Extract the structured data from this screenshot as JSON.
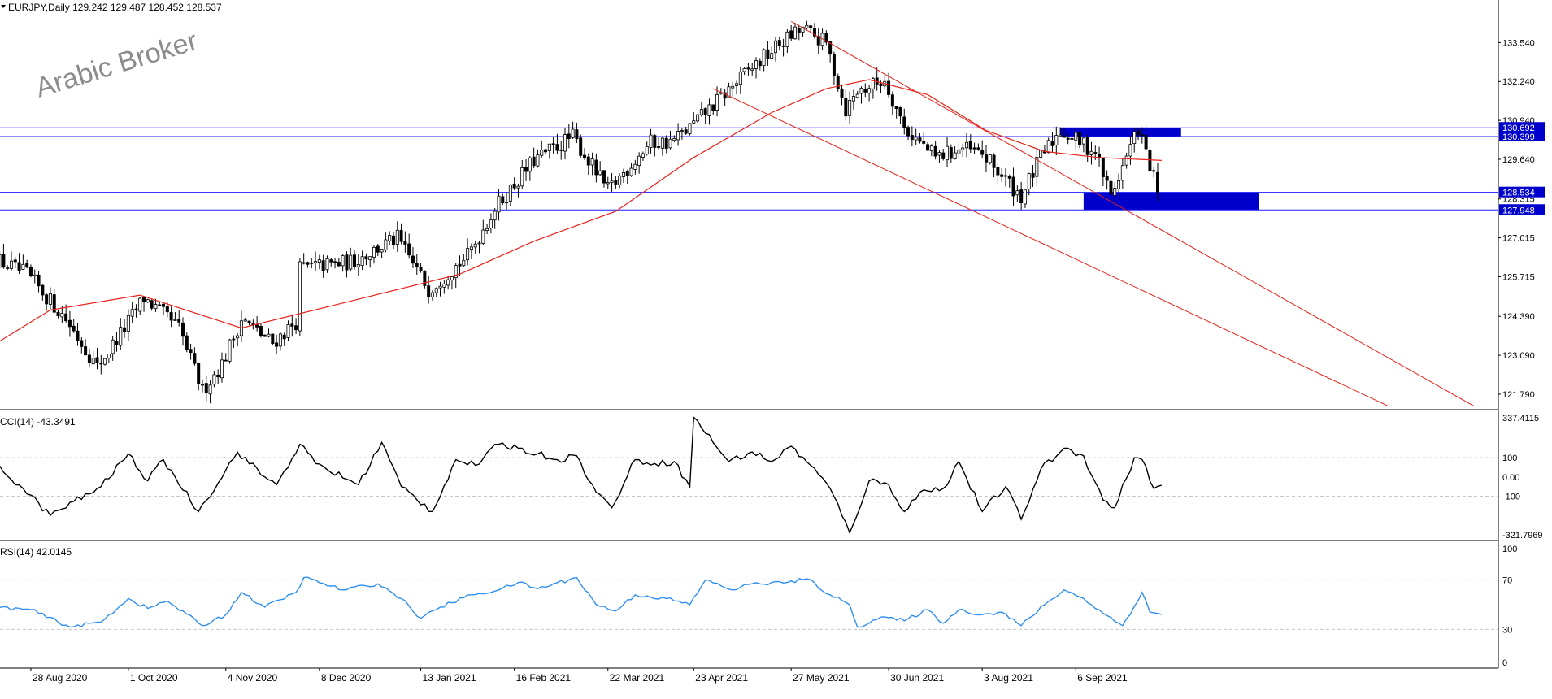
{
  "header": {
    "symbol_line": "EURJPY,Daily  129.242 129.487 128.452 128.537",
    "watermark": "Arabic Broker"
  },
  "colors": {
    "candle": "#000000",
    "moving_average": "#e8211a",
    "channel": "#e8211a",
    "level_line": "#1a1aff",
    "zone": "#0000cc",
    "cci_line": "#000000",
    "rsi_line": "#2e8ff0",
    "grid_dash": "#c8c8c8",
    "label_bg": "#0000cc"
  },
  "chart_data": [
    {
      "type": "candlestick",
      "name": "price",
      "title": "EURJPY,Daily",
      "ohlc_last": {
        "open": 129.242,
        "high": 129.487,
        "low": 128.452,
        "close": 128.537
      },
      "ylim": [
        121.3,
        134.8
      ],
      "y_ticks": [
        "133.540",
        "132.240",
        "130.940",
        "129.640",
        "128.315",
        "127.015",
        "125.715",
        "124.390",
        "123.090",
        "121.790"
      ],
      "x_ticks": [
        "28 Aug 2020",
        "1 Oct 2020",
        "4 Nov 2020",
        "8 Dec 2020",
        "13 Jan 2021",
        "16 Feb 2021",
        "22 Mar 2021",
        "23 Apr 2021",
        "27 May 2021",
        "30 Jun 2021",
        "3 Aug 2021",
        "6 Sep 2021"
      ],
      "key_closes": [
        {
          "date": "2020-08-14",
          "value": 126.4
        },
        {
          "date": "2020-08-28",
          "value": 125.8
        },
        {
          "date": "2020-09-10",
          "value": 124.3
        },
        {
          "date": "2020-09-21",
          "value": 122.7
        },
        {
          "date": "2020-09-30",
          "value": 124.0
        },
        {
          "date": "2020-10-09",
          "value": 125.0
        },
        {
          "date": "2020-10-20",
          "value": 124.0
        },
        {
          "date": "2020-10-30",
          "value": 121.9
        },
        {
          "date": "2020-11-06",
          "value": 122.8
        },
        {
          "date": "2020-11-12",
          "value": 124.3
        },
        {
          "date": "2020-11-23",
          "value": 123.5
        },
        {
          "date": "2020-12-01",
          "value": 124.2
        },
        {
          "date": "2020-12-04",
          "value": 126.0
        },
        {
          "date": "2020-12-21",
          "value": 126.2
        },
        {
          "date": "2021-01-06",
          "value": 127.0
        },
        {
          "date": "2021-01-18",
          "value": 125.3
        },
        {
          "date": "2021-02-01",
          "value": 126.4
        },
        {
          "date": "2021-02-12",
          "value": 128.0
        },
        {
          "date": "2021-02-25",
          "value": 129.6
        },
        {
          "date": "2021-03-10",
          "value": 130.4
        },
        {
          "date": "2021-03-23",
          "value": 128.6
        },
        {
          "date": "2021-04-07",
          "value": 130.2
        },
        {
          "date": "2021-04-16",
          "value": 130.2
        },
        {
          "date": "2021-04-23",
          "value": 130.7
        },
        {
          "date": "2021-05-03",
          "value": 131.7
        },
        {
          "date": "2021-05-14",
          "value": 132.6
        },
        {
          "date": "2021-05-25",
          "value": 133.6
        },
        {
          "date": "2021-06-01",
          "value": 134.0
        },
        {
          "date": "2021-06-11",
          "value": 133.5
        },
        {
          "date": "2021-06-17",
          "value": 131.3
        },
        {
          "date": "2021-06-21",
          "value": 131.9
        },
        {
          "date": "2021-07-01",
          "value": 132.3
        },
        {
          "date": "2021-07-08",
          "value": 130.7
        },
        {
          "date": "2021-07-19",
          "value": 129.7
        },
        {
          "date": "2021-07-28",
          "value": 130.0
        },
        {
          "date": "2021-08-06",
          "value": 129.8
        },
        {
          "date": "2021-08-18",
          "value": 128.4
        },
        {
          "date": "2021-08-27",
          "value": 129.7
        },
        {
          "date": "2021-09-03",
          "value": 130.6
        },
        {
          "date": "2021-09-14",
          "value": 129.9
        },
        {
          "date": "2021-09-20",
          "value": 128.4
        },
        {
          "date": "2021-09-30",
          "value": 130.7
        },
        {
          "date": "2021-10-06",
          "value": 128.54
        }
      ],
      "moving_average": [
        {
          "date": "2020-08-14",
          "value": 123.4
        },
        {
          "date": "2020-09-04",
          "value": 124.6
        },
        {
          "date": "2020-10-05",
          "value": 125.1
        },
        {
          "date": "2020-11-10",
          "value": 124.0
        },
        {
          "date": "2020-12-15",
          "value": 124.8
        },
        {
          "date": "2021-01-29",
          "value": 125.8
        },
        {
          "date": "2021-02-23",
          "value": 126.9
        },
        {
          "date": "2021-03-26",
          "value": 127.9
        },
        {
          "date": "2021-04-23",
          "value": 129.7
        },
        {
          "date": "2021-05-20",
          "value": 131.2
        },
        {
          "date": "2021-06-08",
          "value": 132.0
        },
        {
          "date": "2021-06-25",
          "value": 132.3
        },
        {
          "date": "2021-07-15",
          "value": 131.8
        },
        {
          "date": "2021-08-05",
          "value": 130.6
        },
        {
          "date": "2021-08-25",
          "value": 129.9
        },
        {
          "date": "2021-09-14",
          "value": 129.7
        },
        {
          "date": "2021-10-06",
          "value": 129.6
        }
      ],
      "horizontal_levels": [
        {
          "value": 130.692,
          "label": "130.692"
        },
        {
          "value": 130.399,
          "label": "130.399"
        },
        {
          "value": 128.534,
          "label": "128.534"
        },
        {
          "value": 127.948,
          "label": "127.948"
        }
      ],
      "zones": [
        {
          "from_date": "2021-08-31",
          "to_date": "2021-10-13",
          "low": 130.399,
          "high": 130.692
        },
        {
          "from_date": "2021-09-10",
          "to_date": "2021-11-11",
          "low": 127.948,
          "high": 128.534
        }
      ],
      "channel_lines": [
        {
          "from": {
            "date": "2021-05-27",
            "value": 134.25
          },
          "to": {
            "date": "2022-01-27",
            "value": 121.4
          }
        },
        {
          "from": {
            "date": "2021-04-29",
            "value": 132.0
          },
          "to": {
            "date": "2021-12-27",
            "value": 121.4
          }
        }
      ]
    },
    {
      "type": "line",
      "name": "cci",
      "title": "CCI(14) -43.3491",
      "ylim": [
        -321.7969,
        337.4115
      ],
      "y_ticks": [
        "337.4115",
        "100",
        "0.00",
        "-100",
        "-321.7969"
      ],
      "guides": [
        100,
        -100
      ],
      "points": [
        {
          "date": "2020-08-14",
          "value": 80
        },
        {
          "date": "2020-08-24",
          "value": -60
        },
        {
          "date": "2020-09-03",
          "value": -200
        },
        {
          "date": "2020-09-21",
          "value": -50
        },
        {
          "date": "2020-09-30",
          "value": 120
        },
        {
          "date": "2020-10-08",
          "value": -20
        },
        {
          "date": "2020-10-13",
          "value": 90
        },
        {
          "date": "2020-10-26",
          "value": -180
        },
        {
          "date": "2020-11-09",
          "value": 130
        },
        {
          "date": "2020-11-18",
          "value": 0
        },
        {
          "date": "2020-11-23",
          "value": -40
        },
        {
          "date": "2020-12-01",
          "value": 170
        },
        {
          "date": "2020-12-07",
          "value": 70
        },
        {
          "date": "2020-12-22",
          "value": -40
        },
        {
          "date": "2020-12-31",
          "value": 180
        },
        {
          "date": "2021-01-07",
          "value": -50
        },
        {
          "date": "2021-01-18",
          "value": -180
        },
        {
          "date": "2021-01-26",
          "value": 90
        },
        {
          "date": "2021-02-02",
          "value": 60
        },
        {
          "date": "2021-02-10",
          "value": 170
        },
        {
          "date": "2021-02-17",
          "value": 150
        },
        {
          "date": "2021-02-25",
          "value": 120
        },
        {
          "date": "2021-03-05",
          "value": 90
        },
        {
          "date": "2021-03-12",
          "value": 110
        },
        {
          "date": "2021-03-18",
          "value": -80
        },
        {
          "date": "2021-03-23",
          "value": -160
        },
        {
          "date": "2021-03-31",
          "value": 90
        },
        {
          "date": "2021-04-08",
          "value": 70
        },
        {
          "date": "2021-04-16",
          "value": 80
        },
        {
          "date": "2021-04-20",
          "value": -50
        },
        {
          "date": "2021-04-23",
          "value": 310
        },
        {
          "date": "2021-05-04",
          "value": 80
        },
        {
          "date": "2021-05-13",
          "value": 130
        },
        {
          "date": "2021-05-20",
          "value": 80
        },
        {
          "date": "2021-05-26",
          "value": 160
        },
        {
          "date": "2021-06-03",
          "value": 60
        },
        {
          "date": "2021-06-10",
          "value": -60
        },
        {
          "date": "2021-06-18",
          "value": -290
        },
        {
          "date": "2021-06-24",
          "value": -20
        },
        {
          "date": "2021-07-02",
          "value": -40
        },
        {
          "date": "2021-07-06",
          "value": -180
        },
        {
          "date": "2021-07-12",
          "value": -80
        },
        {
          "date": "2021-07-20",
          "value": -60
        },
        {
          "date": "2021-07-26",
          "value": 80
        },
        {
          "date": "2021-08-03",
          "value": -180
        },
        {
          "date": "2021-08-12",
          "value": -50
        },
        {
          "date": "2021-08-17",
          "value": -220
        },
        {
          "date": "2021-08-24",
          "value": 40
        },
        {
          "date": "2021-09-01",
          "value": 150
        },
        {
          "date": "2021-09-08",
          "value": 110
        },
        {
          "date": "2021-09-16",
          "value": -120
        },
        {
          "date": "2021-09-20",
          "value": -160
        },
        {
          "date": "2021-09-27",
          "value": 100
        },
        {
          "date": "2021-09-30",
          "value": 90
        },
        {
          "date": "2021-10-04",
          "value": -60
        },
        {
          "date": "2021-10-06",
          "value": -43.3491
        }
      ]
    },
    {
      "type": "line",
      "name": "rsi",
      "title": "RSI(14) 42.0145",
      "ylim": [
        0,
        100
      ],
      "y_ticks": [
        "100",
        "70",
        "30",
        "0"
      ],
      "guides": [
        70,
        30
      ],
      "points": [
        {
          "date": "2020-08-14",
          "value": 48
        },
        {
          "date": "2020-08-28",
          "value": 46
        },
        {
          "date": "2020-09-09",
          "value": 32
        },
        {
          "date": "2020-09-21",
          "value": 36
        },
        {
          "date": "2020-10-01",
          "value": 55
        },
        {
          "date": "2020-10-08",
          "value": 47
        },
        {
          "date": "2020-10-14",
          "value": 53
        },
        {
          "date": "2020-10-27",
          "value": 33
        },
        {
          "date": "2020-11-04",
          "value": 42
        },
        {
          "date": "2020-11-10",
          "value": 60
        },
        {
          "date": "2020-11-20",
          "value": 48
        },
        {
          "date": "2020-11-30",
          "value": 60
        },
        {
          "date": "2020-12-04",
          "value": 72
        },
        {
          "date": "2020-12-16",
          "value": 62
        },
        {
          "date": "2020-12-29",
          "value": 67
        },
        {
          "date": "2021-01-06",
          "value": 55
        },
        {
          "date": "2021-01-15",
          "value": 39
        },
        {
          "date": "2021-01-22",
          "value": 48
        },
        {
          "date": "2021-02-01",
          "value": 58
        },
        {
          "date": "2021-02-12",
          "value": 62
        },
        {
          "date": "2021-02-18",
          "value": 68
        },
        {
          "date": "2021-02-26",
          "value": 63
        },
        {
          "date": "2021-03-10",
          "value": 72
        },
        {
          "date": "2021-03-19",
          "value": 50
        },
        {
          "date": "2021-03-24",
          "value": 45
        },
        {
          "date": "2021-03-31",
          "value": 58
        },
        {
          "date": "2021-04-12",
          "value": 55
        },
        {
          "date": "2021-04-20",
          "value": 50
        },
        {
          "date": "2021-04-26",
          "value": 70
        },
        {
          "date": "2021-05-06",
          "value": 62
        },
        {
          "date": "2021-05-14",
          "value": 67
        },
        {
          "date": "2021-05-25",
          "value": 68
        },
        {
          "date": "2021-06-01",
          "value": 71
        },
        {
          "date": "2021-06-10",
          "value": 58
        },
        {
          "date": "2021-06-16",
          "value": 50
        },
        {
          "date": "2021-06-20",
          "value": 32
        },
        {
          "date": "2021-06-28",
          "value": 40
        },
        {
          "date": "2021-07-06",
          "value": 37
        },
        {
          "date": "2021-07-14",
          "value": 46
        },
        {
          "date": "2021-07-20",
          "value": 35
        },
        {
          "date": "2021-07-26",
          "value": 46
        },
        {
          "date": "2021-08-03",
          "value": 42
        },
        {
          "date": "2021-08-10",
          "value": 44
        },
        {
          "date": "2021-08-17",
          "value": 33
        },
        {
          "date": "2021-08-26",
          "value": 50
        },
        {
          "date": "2021-09-03",
          "value": 62
        },
        {
          "date": "2021-09-10",
          "value": 55
        },
        {
          "date": "2021-09-16",
          "value": 43
        },
        {
          "date": "2021-09-22",
          "value": 33
        },
        {
          "date": "2021-09-29",
          "value": 60
        },
        {
          "date": "2021-10-03",
          "value": 44
        },
        {
          "date": "2021-10-06",
          "value": 42.0145
        }
      ]
    }
  ]
}
